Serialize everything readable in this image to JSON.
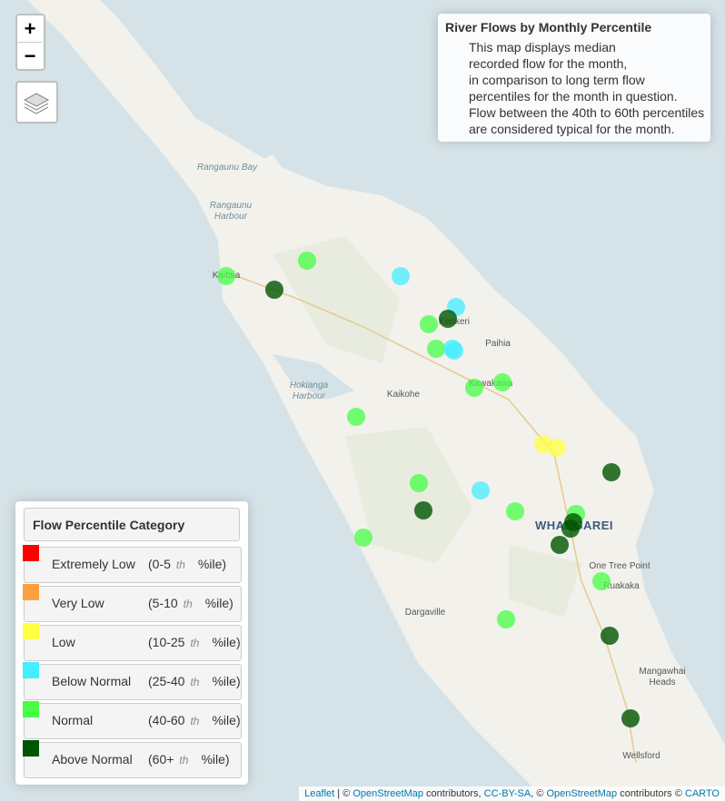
{
  "zoom": {
    "in": "+",
    "out": "−"
  },
  "info": {
    "title": "River Flows by Monthly Percentile",
    "lines": [
      "This map displays median",
      "recorded flow for the month,",
      "in comparison to long term flow",
      "percentiles for the month in question.",
      "Flow between the 40th to 60th percentiles",
      "are considered typical for the month."
    ]
  },
  "legend": {
    "title": "Flow Percentile Category",
    "items": [
      {
        "label": "Extremely Low",
        "range": "(0-5",
        "suffix": "th",
        "unit": "%ile)",
        "color": "#ff0000"
      },
      {
        "label": "Very Low",
        "range": "(5-10",
        "suffix": "th",
        "unit": "%ile)",
        "color": "#ffa040"
      },
      {
        "label": "Low",
        "range": "(10-25",
        "suffix": "th",
        "unit": "%ile)",
        "color": "#ffff44"
      },
      {
        "label": "Below Normal",
        "range": "(25-40",
        "suffix": "th",
        "unit": "%ile)",
        "color": "#44eeff"
      },
      {
        "label": "Normal",
        "range": "(40-60",
        "suffix": "th",
        "unit": "%ile)",
        "color": "#44ff44"
      },
      {
        "label": "Above Normal",
        "range": "(60+",
        "suffix": "th",
        "unit": "%ile)",
        "color": "#005500"
      }
    ]
  },
  "places": [
    "Rangaunu Bay",
    [
      "Rangaunu",
      "Harbour"
    ],
    "Kaitaia",
    "Kerikeri",
    "Paihia",
    "Kawakawa",
    [
      "Hokianga",
      "Harbour"
    ],
    "Kaikohe",
    "WHANGAREI",
    "One Tree Point",
    "Ruakaka",
    "Dargaville",
    [
      "Mangawhai",
      "Heads"
    ],
    "Wellsford"
  ],
  "attribution": [
    "Leaflet",
    " | © ",
    "OpenStreetMap",
    " contributors, ",
    "CC-BY-SA",
    ", © ",
    "OpenStreetMap",
    " contributors © ",
    "CARTO"
  ]
}
